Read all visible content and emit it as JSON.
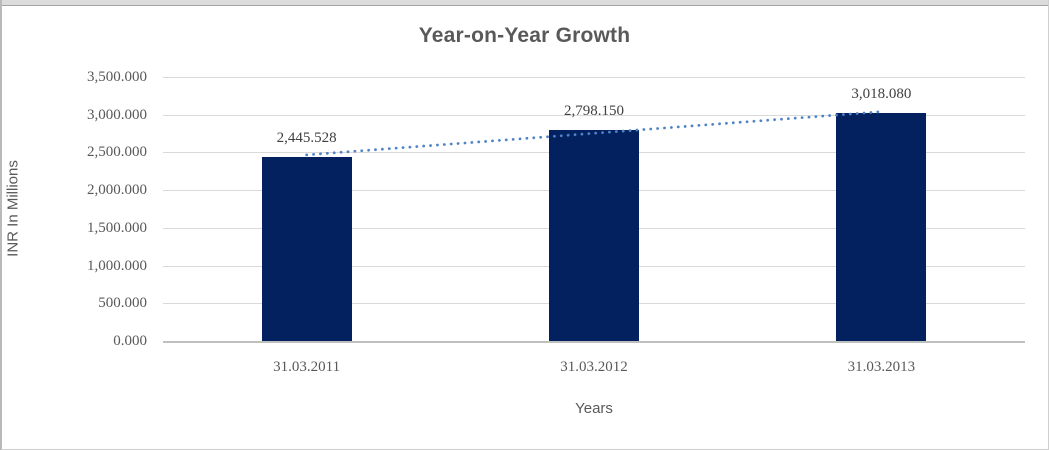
{
  "chart_data": {
    "type": "bar",
    "title": "Year-on-Year Growth",
    "xlabel": "Years",
    "ylabel": "INR In Millions",
    "categories": [
      "31.03.2011",
      "31.03.2012",
      "31.03.2013"
    ],
    "values": [
      2445.528,
      2798.15,
      3018.08
    ],
    "value_labels": [
      "2,445.528",
      "2,798.150",
      "3,018.080"
    ],
    "ylim": [
      0,
      3500
    ],
    "ytick_step": 500,
    "ytick_labels": [
      "3,500.000",
      "3,000.000",
      "2,500.000",
      "2,000.000",
      "1,500.000",
      "1,000.000",
      "500.000",
      "0.000"
    ],
    "grid": true,
    "legend": false,
    "trendline": {
      "type": "linear",
      "style": "dotted"
    }
  },
  "colors": {
    "bar": "#03215e",
    "trendline": "#4e83c6",
    "gridline": "#d9d9d9",
    "axis_line": "#bfbfbf",
    "tick_text": "#595959",
    "data_label_text": "#404040",
    "title_text": "#595959"
  }
}
